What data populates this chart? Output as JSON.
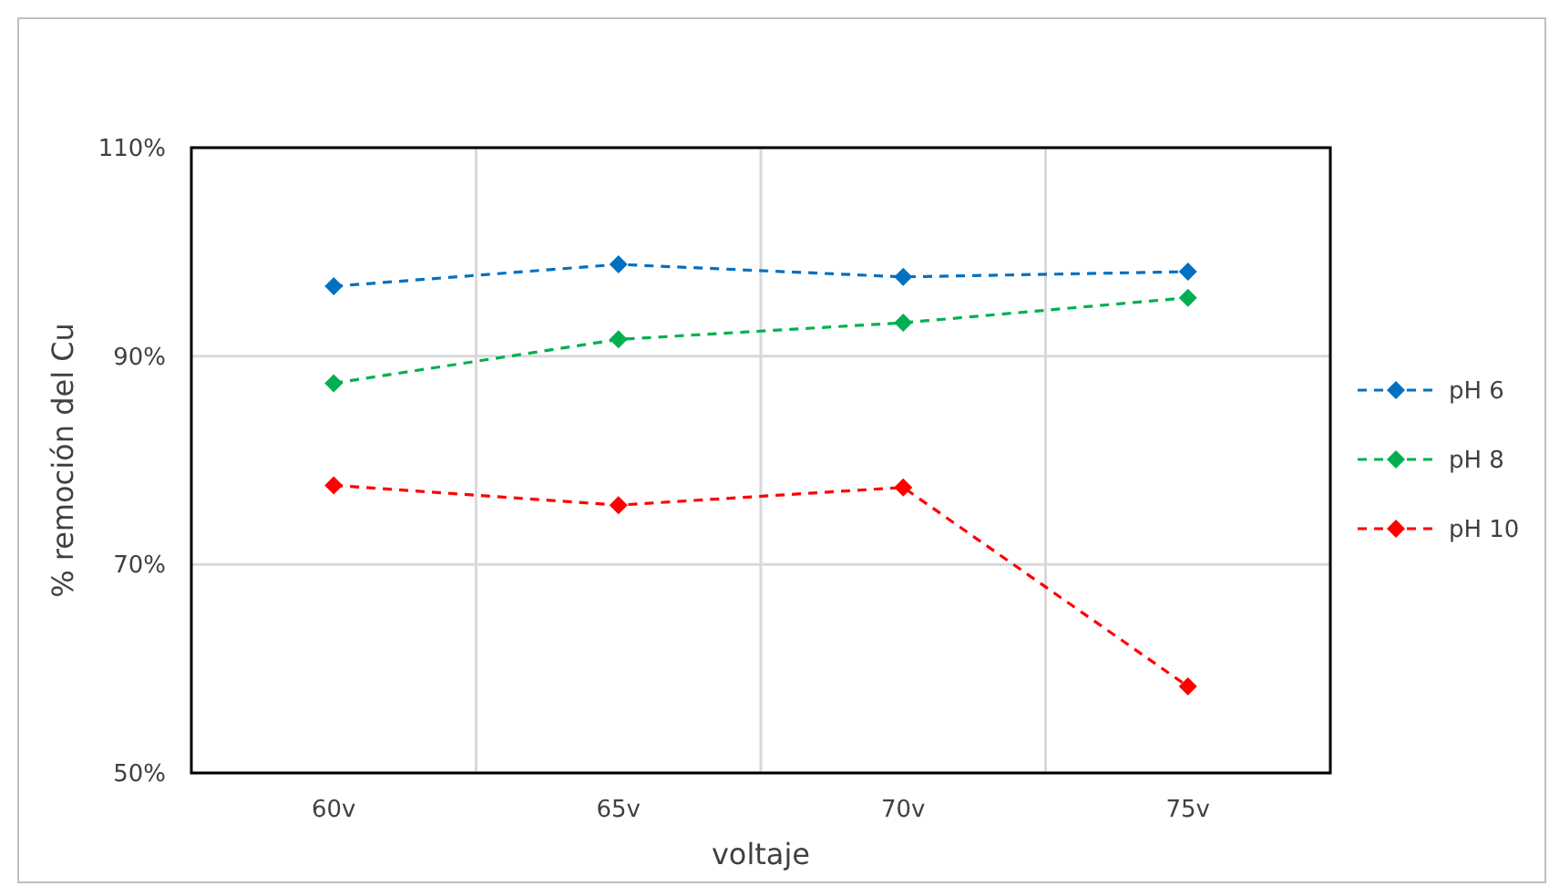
{
  "chart_data": {
    "type": "line",
    "xlabel": "voltaje",
    "ylabel": "% remoción del Cu",
    "categories": [
      "60v",
      "65v",
      "70v",
      "75v"
    ],
    "series": [
      {
        "name": "pH 6",
        "color": "#0070c0",
        "values": [
          96.7,
          98.8,
          97.6,
          98.1
        ]
      },
      {
        "name": "pH 8",
        "color": "#00b050",
        "values": [
          87.4,
          91.6,
          93.2,
          95.6
        ]
      },
      {
        "name": "pH 10",
        "color": "#ff0000",
        "values": [
          77.6,
          75.7,
          77.4,
          58.3
        ]
      }
    ],
    "ylim": [
      50,
      110
    ],
    "yticks": [
      {
        "value": 50,
        "label": "50%"
      },
      {
        "value": 70,
        "label": "70%"
      },
      {
        "value": 90,
        "label": "90%"
      },
      {
        "value": 110,
        "label": "110%"
      }
    ],
    "grid": true,
    "legend": "right",
    "marker": "diamond",
    "line_style": "dashed"
  }
}
